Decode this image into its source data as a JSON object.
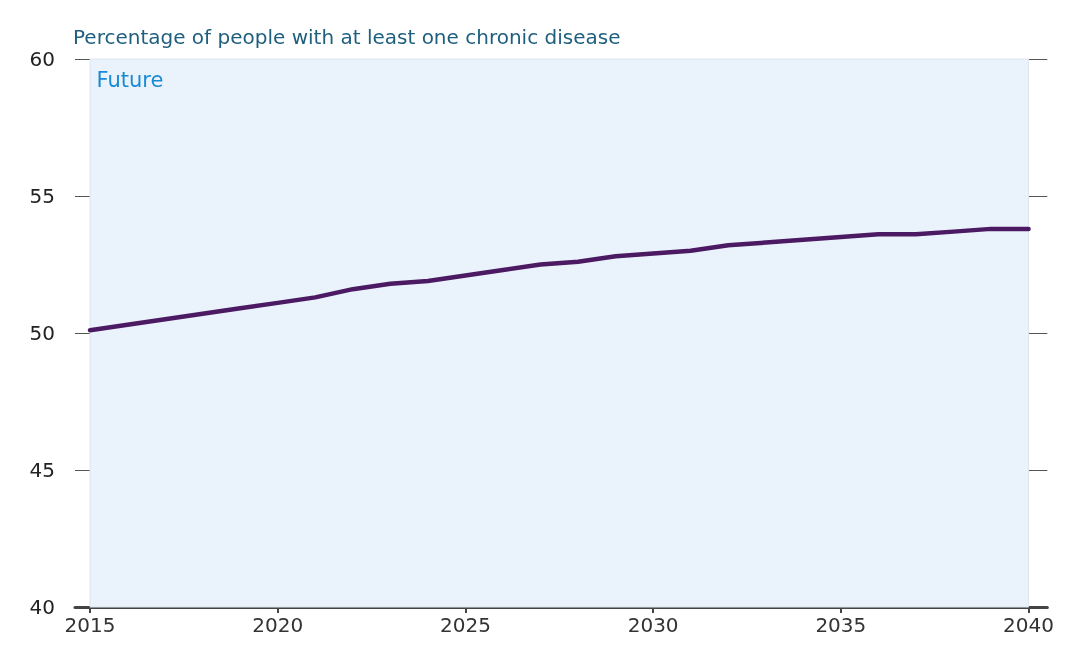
{
  "chart_data": {
    "type": "line",
    "title": "Percentage of people with at least one chronic disease",
    "x": [
      2015,
      2016,
      2017,
      2018,
      2019,
      2020,
      2021,
      2022,
      2023,
      2024,
      2025,
      2026,
      2027,
      2028,
      2029,
      2030,
      2031,
      2032,
      2033,
      2034,
      2035,
      2036,
      2037,
      2038,
      2039,
      2040
    ],
    "series": [
      {
        "color": "#4b1a63",
        "values": [
          50.1,
          50.3,
          50.5,
          50.7,
          50.9,
          51.1,
          51.3,
          51.6,
          51.8,
          51.9,
          52.1,
          52.3,
          52.5,
          52.6,
          52.8,
          52.9,
          53.0,
          53.2,
          53.3,
          53.4,
          53.5,
          53.6,
          53.6,
          53.7,
          53.8,
          53.8
        ]
      }
    ],
    "xlim": [
      2014.6,
      2040.5
    ],
    "xticks": [
      2015,
      2020,
      2025,
      2030,
      2035,
      2040
    ],
    "ylim": [
      40,
      60
    ],
    "yticks": [
      40,
      45,
      50,
      55,
      60
    ],
    "grid": "y",
    "marker": "none",
    "line_style": "solid",
    "bands": [
      {
        "axis": "x",
        "from": 2015,
        "to": 2040,
        "label": "Future",
        "color": "#eaf3fb"
      }
    ]
  }
}
